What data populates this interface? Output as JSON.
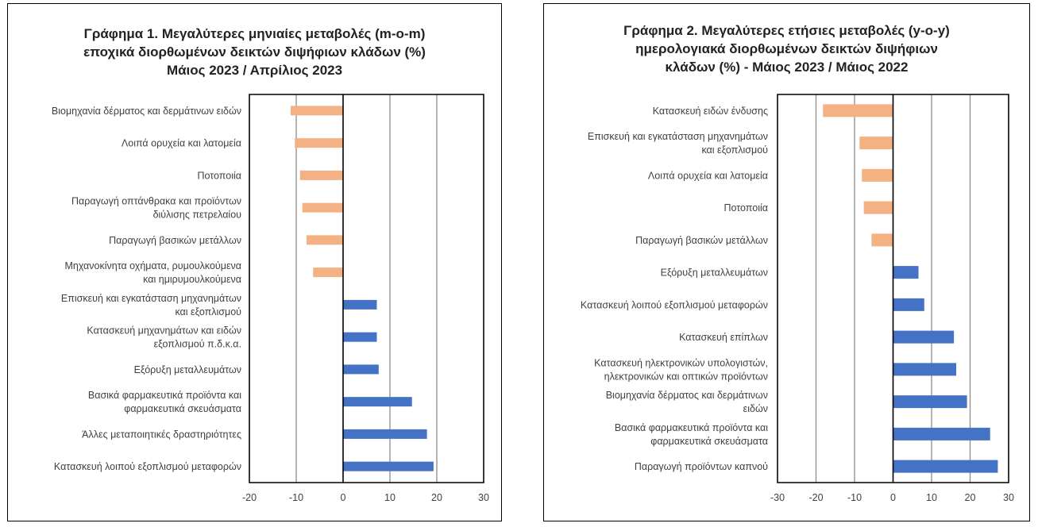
{
  "chart_data": [
    {
      "type": "bar",
      "orientation": "horizontal",
      "title_lines": [
        "Γράφημα 1. Μεγαλύτερες μηνιαίες μεταβολές (m-o-m)",
        "εποχικά διορθωμένων δεικτών διψήφιων κλάδων (%)",
        "Μάιος 2023 / Απρίλιος 2023"
      ],
      "categories": [
        [
          "Βιομηχανία δέρματος και δερμάτινων ειδών"
        ],
        [
          "Λοιπά ορυχεία και λατομεία"
        ],
        [
          "Ποτοποιία"
        ],
        [
          "Παραγωγή οπτάνθρακα και προϊόντων",
          "διύλισης πετρελαίου"
        ],
        [
          "Παραγωγή βασικών μετάλλων"
        ],
        [
          "Μηχανοκίνητα οχήματα, ρυμουλκούμενα",
          "και ημιρυμουλκούμενα"
        ],
        [
          "Επισκευή και εγκατάσταση μηχανημάτων",
          "και εξοπλισμού"
        ],
        [
          "Κατασκευή μηχανημάτων και ειδών",
          "εξοπλισμού π.δ.κ.α."
        ],
        [
          "Εξόρυξη μεταλλευμάτων"
        ],
        [
          "Βασικά φαρμακευτικά προϊόντα και",
          "φαρμακευτικά σκευάσματα"
        ],
        [
          "Άλλες μεταποιητικές δραστηριότητες"
        ],
        [
          "Κατασκευή λοιπού εξοπλισμού μεταφορών"
        ]
      ],
      "values": [
        -11.2,
        -10.3,
        -9.2,
        -8.7,
        -7.8,
        -6.4,
        7.2,
        7.2,
        7.6,
        14.7,
        17.9,
        19.3
      ],
      "xlim": [
        -20,
        30
      ],
      "xticks": [
        "-20",
        "-10",
        "0",
        "10",
        "20",
        "30"
      ],
      "grid": true,
      "colors": {
        "negative": "#F4B183",
        "positive": "#4472C4"
      }
    },
    {
      "type": "bar",
      "orientation": "horizontal",
      "title_lines": [
        "Γράφημα 2. Μεγαλύτερες ετήσιες μεταβολές (y-o-y)",
        "ημερολογιακά διορθωμένων δεικτών διψήφιων",
        "κλάδων (%) - Μάιος 2023 / Μάιος 2022"
      ],
      "categories": [
        [
          "Κατασκευή ειδών ένδυσης"
        ],
        [
          "Επισκευή και εγκατάσταση μηχανημάτων",
          "και εξοπλισμού"
        ],
        [
          "Λοιπά ορυχεία και λατομεία"
        ],
        [
          "Ποτοποιία"
        ],
        [
          "Παραγωγή βασικών μετάλλων"
        ],
        [
          "Εξόρυξη μεταλλευμάτων"
        ],
        [
          "Κατασκευή λοιπού εξοπλισμού μεταφορών"
        ],
        [
          "Κατασκευή επίπλων"
        ],
        [
          "Κατασκευή ηλεκτρονικών υπολογιστών,",
          "ηλεκτρονικών και οπτικών προϊόντων"
        ],
        [
          "Βιομηχανία δέρματος και δερμάτινων",
          "ειδών"
        ],
        [
          "Βασικά φαρμακευτικά προϊόντα και",
          "φαρμακευτικά σκευάσματα"
        ],
        [
          "Παραγωγή προϊόντων καπνού"
        ]
      ],
      "values": [
        -18.2,
        -8.7,
        -8.1,
        -7.6,
        -5.6,
        6.6,
        8.1,
        15.8,
        16.4,
        19.2,
        25.2,
        27.2
      ],
      "xlim": [
        -30,
        30
      ],
      "xticks": [
        "-30",
        "-20",
        "-10",
        "0",
        "10",
        "20",
        "30"
      ],
      "grid": true,
      "colors": {
        "negative": "#F4B183",
        "positive": "#4472C4"
      }
    }
  ]
}
